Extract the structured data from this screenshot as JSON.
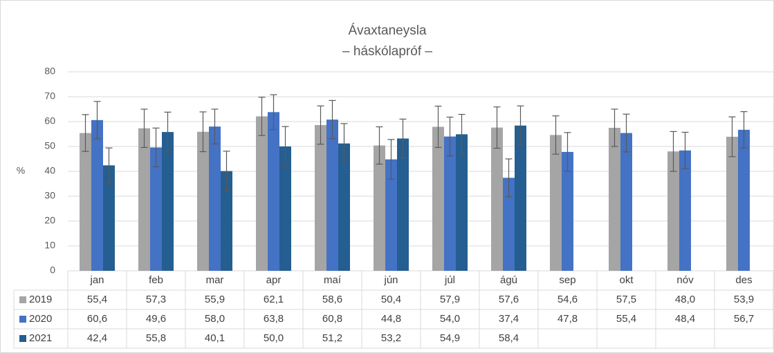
{
  "chart_data": {
    "type": "bar",
    "title": "Ávaxtaneysla",
    "subtitle": "– háskólapróf –",
    "y_label": "%",
    "categories": [
      "jan",
      "feb",
      "mar",
      "apr",
      "maí",
      "jún",
      "júl",
      "ágú",
      "sep",
      "okt",
      "nóv",
      "des"
    ],
    "series": [
      {
        "name": "2019",
        "color": "#a5a5a5",
        "values": [
          55.4,
          57.3,
          55.9,
          62.1,
          58.6,
          50.4,
          57.9,
          57.6,
          54.6,
          57.5,
          48.0,
          53.9
        ],
        "value_labels": [
          "55,4",
          "57,3",
          "55,9",
          "62,1",
          "58,6",
          "50,4",
          "57,9",
          "57,6",
          "54,6",
          "57,5",
          "48,0",
          "53,9"
        ],
        "errors": [
          7.4,
          7.7,
          8.0,
          7.7,
          7.7,
          7.5,
          8.3,
          8.3,
          7.7,
          7.5,
          8.0,
          8.0
        ]
      },
      {
        "name": "2020",
        "color": "#4472c4",
        "values": [
          60.6,
          49.6,
          58.0,
          63.8,
          60.8,
          44.8,
          54.0,
          37.4,
          47.8,
          55.4,
          48.4,
          56.7
        ],
        "value_labels": [
          "60,6",
          "49,6",
          "58,0",
          "63,8",
          "60,8",
          "44,8",
          "54,0",
          "37,4",
          "47,8",
          "55,4",
          "48,4",
          "56,7"
        ],
        "errors": [
          7.5,
          7.8,
          7.0,
          7.0,
          7.7,
          8.0,
          7.8,
          7.6,
          7.8,
          7.6,
          7.3,
          7.3
        ]
      },
      {
        "name": "2021",
        "color": "#255e91",
        "values": [
          42.4,
          55.8,
          40.1,
          50.0,
          51.2,
          53.2,
          54.9,
          58.4,
          null,
          null,
          null,
          null
        ],
        "value_labels": [
          "42,4",
          "55,8",
          "40,1",
          "50,0",
          "51,2",
          "53,2",
          "54,9",
          "58,4",
          null,
          null,
          null,
          null
        ],
        "errors": [
          7.0,
          8.0,
          8.0,
          8.0,
          8.0,
          7.8,
          8.0,
          7.9,
          null,
          null,
          null,
          null
        ]
      }
    ],
    "ylim": [
      0,
      80
    ],
    "yticks": [
      0,
      10,
      20,
      30,
      40,
      50,
      60,
      70,
      80
    ],
    "grid": true
  }
}
